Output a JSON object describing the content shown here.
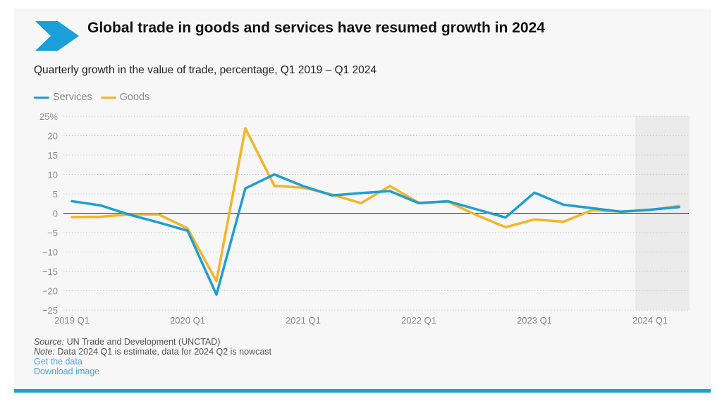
{
  "header": {
    "title": "Global trade in goods and services have resumed growth in 2024",
    "subtitle": "Quarterly growth in the value of trade, percentage, Q1 2019 – Q1 2024",
    "icon": "chevron-right-icon"
  },
  "colors": {
    "services": "#1f9ed1",
    "goods": "#f2b52a",
    "accent": "#1a9fd8",
    "shade": "#ebebeb"
  },
  "footer": {
    "source_label": "Source:",
    "source_text": " UN Trade and Development (UNCTAD)",
    "note_label": "Note:",
    "note_text": " Data 2024 Q1 is estimate, data for 2024 Q2 is nowcast",
    "get_data": "Get the data",
    "download_image": "Download image"
  },
  "chart_data": {
    "type": "line",
    "title": "Global trade in goods and services have resumed growth in 2024",
    "subtitle": "Quarterly growth in the value of trade, percentage, Q1 2019 – Q1 2024",
    "xlabel": "",
    "ylabel": "",
    "x": [
      "2019 Q1",
      "2019 Q2",
      "2019 Q3",
      "2019 Q4",
      "2020 Q1",
      "2020 Q2",
      "2020 Q3",
      "2020 Q4",
      "2021 Q1",
      "2021 Q2",
      "2021 Q3",
      "2021 Q4",
      "2022 Q1",
      "2022 Q2",
      "2022 Q3",
      "2022 Q4",
      "2023 Q1",
      "2023 Q2",
      "2023 Q3",
      "2023 Q4",
      "2024 Q1",
      "2024 Q2"
    ],
    "xtick_labels": [
      "2019 Q1",
      "2020 Q1",
      "2021 Q1",
      "2022 Q1",
      "2023 Q1",
      "2024 Q1"
    ],
    "xtick_indices": [
      0,
      4,
      8,
      12,
      16,
      20
    ],
    "ylim": [
      -25,
      25
    ],
    "yticks": [
      25,
      20,
      15,
      10,
      5,
      0,
      -5,
      -10,
      -15,
      -20,
      -25
    ],
    "ytick_labels": [
      "25%",
      "20",
      "15",
      "10",
      "5",
      "0",
      "−5",
      "−10",
      "−15",
      "−20",
      "−25"
    ],
    "grid": true,
    "legend": "top-left",
    "shaded_region": {
      "from": "2024 Q1",
      "to": "2024 Q2",
      "meaning": "estimate / nowcast"
    },
    "series": [
      {
        "name": "Services",
        "values": [
          3.1,
          2.0,
          -0.4,
          -2.4,
          -4.5,
          -21.0,
          6.4,
          10.0,
          7.0,
          4.6,
          5.2,
          5.7,
          2.6,
          3.1,
          1.0,
          -1.1,
          5.3,
          2.2,
          1.3,
          0.4,
          0.9,
          1.6
        ]
      },
      {
        "name": "Goods",
        "values": [
          -1.0,
          -0.9,
          -0.3,
          -0.3,
          -3.9,
          -17.5,
          21.9,
          7.1,
          6.6,
          4.8,
          2.6,
          7.0,
          2.7,
          3.0,
          -0.5,
          -3.6,
          -1.6,
          -2.2,
          0.8,
          0.4,
          0.8,
          1.9
        ]
      }
    ]
  }
}
